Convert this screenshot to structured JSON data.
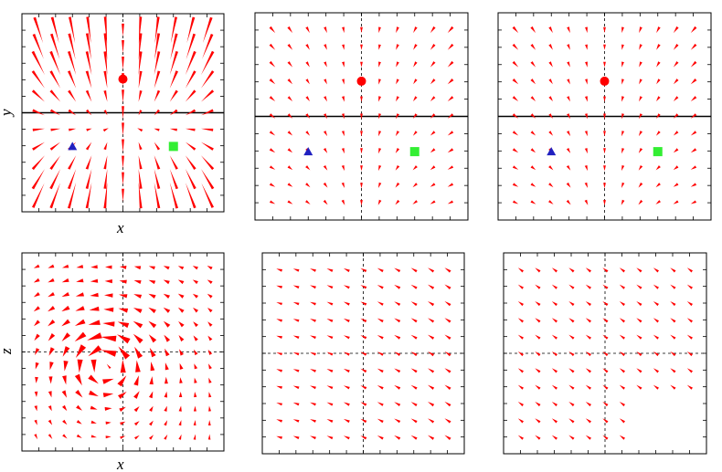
{
  "chart_data": [
    {
      "type": "quiver",
      "panel": "top-left",
      "xlabel": "x",
      "ylabel": "y",
      "grid_size": 11,
      "xlim": [
        -5,
        5
      ],
      "ylim": [
        -5,
        5
      ],
      "field": "saddle",
      "solid_horizontal_line": true,
      "dashed_vertical_line": true,
      "markers": [
        {
          "shape": "circle",
          "color": "#ff0000",
          "x": 0,
          "y": 1.7
        },
        {
          "shape": "triangle",
          "color": "#2020c0",
          "x": -2.5,
          "y": -1.7
        },
        {
          "shape": "square",
          "color": "#33ee33",
          "x": 2.5,
          "y": -1.7
        }
      ]
    },
    {
      "type": "quiver",
      "panel": "top-center",
      "xlabel": "",
      "ylabel": "",
      "grid_size": 11,
      "xlim": [
        -5,
        5
      ],
      "ylim": [
        -5,
        5
      ],
      "field": "weak-saddle",
      "solid_horizontal_line": true,
      "dashed_vertical_line": true,
      "markers": [
        {
          "shape": "circle",
          "color": "#ff0000",
          "x": 0,
          "y": 1.7
        },
        {
          "shape": "triangle",
          "color": "#2020c0",
          "x": -2.5,
          "y": -1.7
        },
        {
          "shape": "square",
          "color": "#33ee33",
          "x": 2.5,
          "y": -1.7
        }
      ]
    },
    {
      "type": "quiver",
      "panel": "top-right",
      "xlabel": "",
      "ylabel": "",
      "grid_size": 11,
      "xlim": [
        -5,
        5
      ],
      "ylim": [
        -5,
        5
      ],
      "field": "weak-saddle",
      "solid_horizontal_line": true,
      "dashed_vertical_line": true,
      "markers": [
        {
          "shape": "circle",
          "color": "#ff0000",
          "x": 0,
          "y": 1.7
        },
        {
          "shape": "triangle",
          "color": "#2020c0",
          "x": -2.5,
          "y": -1.7
        },
        {
          "shape": "square",
          "color": "#33ee33",
          "x": 2.5,
          "y": -1.7
        }
      ]
    },
    {
      "type": "quiver",
      "panel": "bottom-left",
      "xlabel": "x",
      "ylabel": "z",
      "grid_size": 13,
      "xlim": [
        -5,
        5
      ],
      "ylim": [
        -5,
        5
      ],
      "field": "vortex",
      "vortex_center": [
        -0.9,
        -0.6
      ],
      "solid_horizontal_line": false,
      "dashed_vertical_line": true,
      "dashed_horizontal_line": true,
      "markers": []
    },
    {
      "type": "quiver",
      "panel": "bottom-center",
      "xlabel": "",
      "ylabel": "",
      "grid_size": 11,
      "xlim": [
        -5,
        5
      ],
      "ylim": [
        -5,
        5
      ],
      "field": "uniform-left-up",
      "solid_horizontal_line": false,
      "dashed_vertical_line": true,
      "dashed_horizontal_line": true,
      "markers": []
    },
    {
      "type": "quiver",
      "panel": "bottom-right",
      "xlabel": "",
      "ylabel": "",
      "grid_size": 11,
      "xlim": [
        -5,
        5
      ],
      "ylim": [
        -5,
        5
      ],
      "field": "uniform-left-up-sparse",
      "solid_horizontal_line": false,
      "dashed_vertical_line": true,
      "dashed_horizontal_line": true,
      "markers": []
    }
  ],
  "colors": {
    "arrow": "#ff0000",
    "frame": "#000000",
    "guide": "#000000"
  }
}
